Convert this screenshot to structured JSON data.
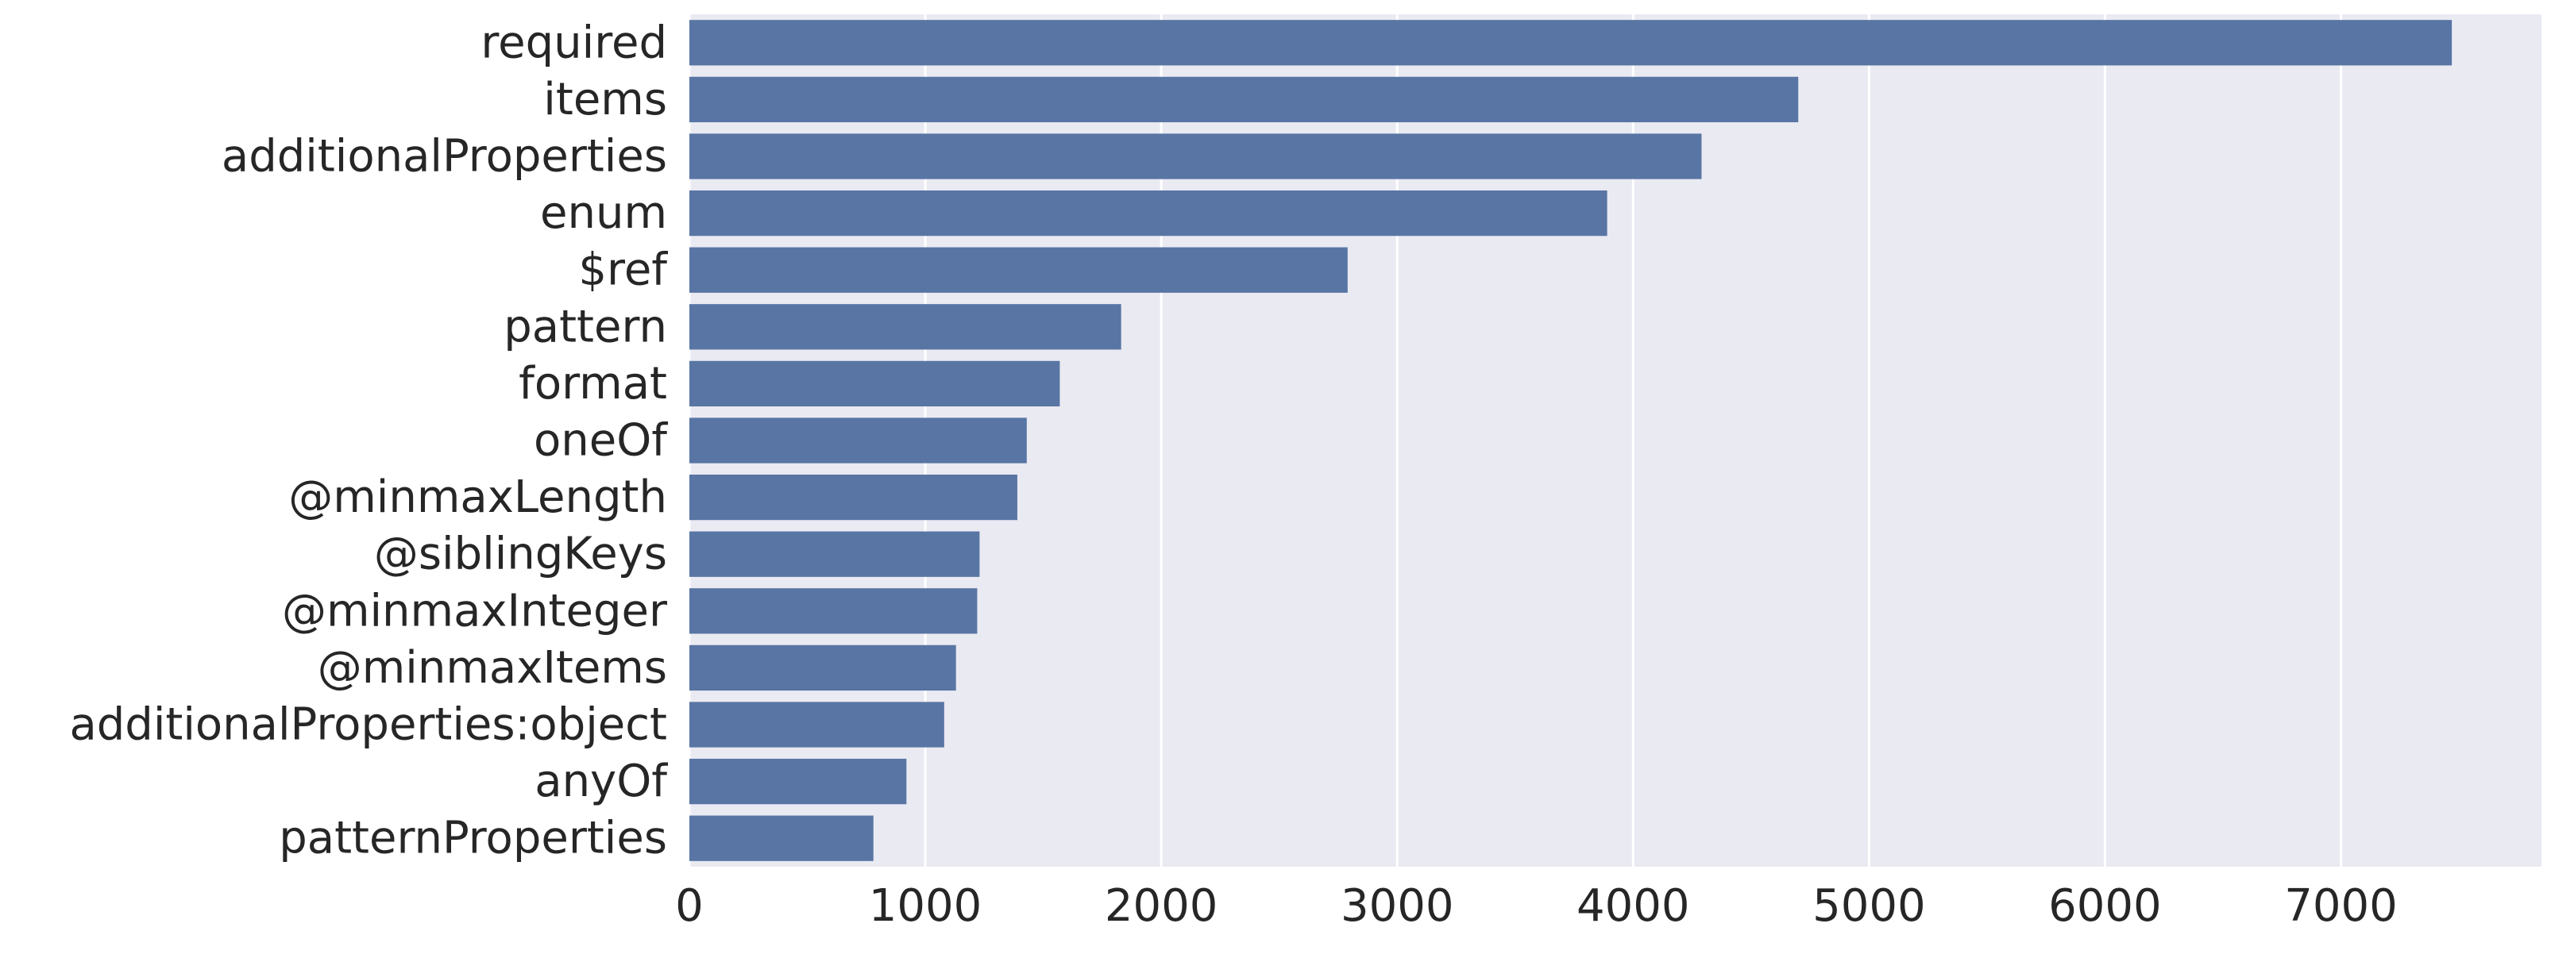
{
  "chart_data": {
    "type": "bar",
    "orientation": "horizontal",
    "categories": [
      "required",
      "items",
      "additionalProperties",
      "enum",
      "$ref",
      "pattern",
      "format",
      "oneOf",
      "@minmaxLength",
      "@siblingKeys",
      "@minmaxInteger",
      "@minmaxItems",
      "additionalProperties:object",
      "anyOf",
      "patternProperties"
    ],
    "values": [
      7470,
      4700,
      4290,
      3890,
      2790,
      1830,
      1570,
      1430,
      1390,
      1230,
      1220,
      1130,
      1080,
      920,
      780
    ],
    "xlim": [
      0,
      7850
    ],
    "x_ticks": [
      0,
      1000,
      2000,
      3000,
      4000,
      5000,
      6000,
      7000
    ],
    "x_tick_labels": [
      "0",
      "1000",
      "2000",
      "3000",
      "4000",
      "5000",
      "6000",
      "7000"
    ],
    "grid": true,
    "grid_axis": "x",
    "colors": {
      "bar": "#5875a4",
      "plot_background": "#eaeaf2",
      "grid": "#ffffff",
      "text": "#262626"
    }
  }
}
